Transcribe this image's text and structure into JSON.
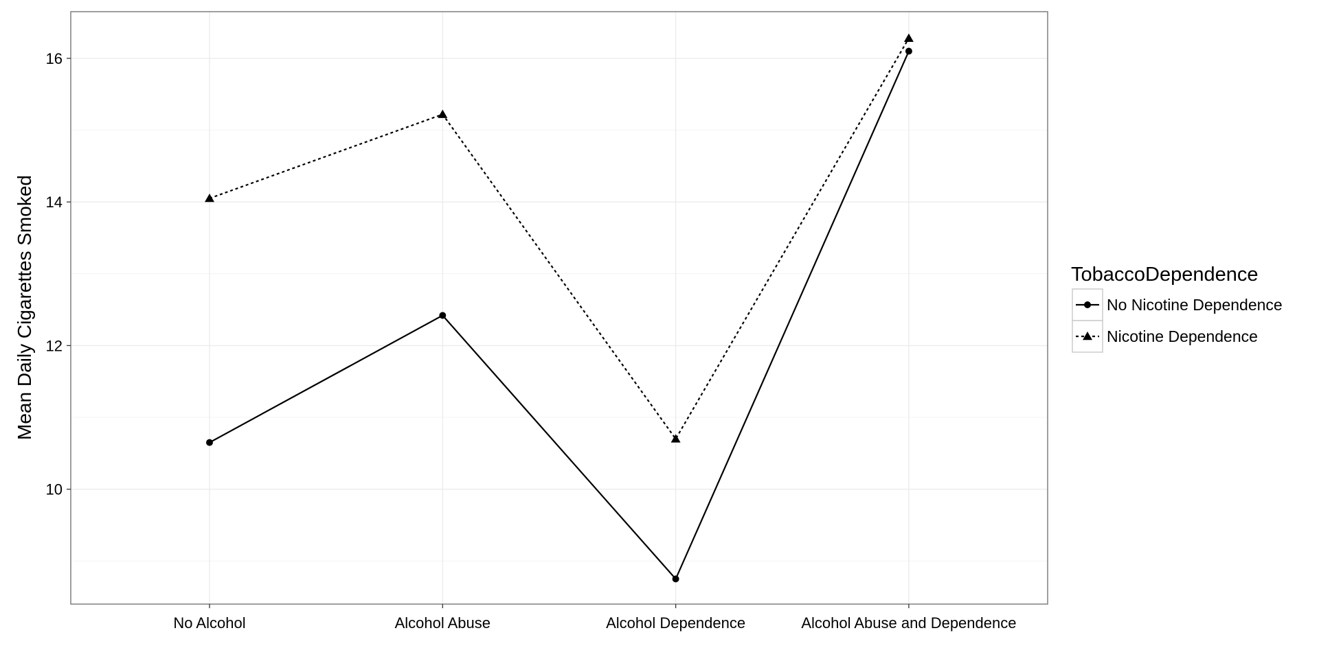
{
  "chart_data": {
    "type": "line",
    "categories": [
      "No Alcohol",
      "Alcohol Abuse",
      "Alcohol Dependence",
      "Alcohol Abuse and Dependence"
    ],
    "series": [
      {
        "name": "No Nicotine Dependence",
        "values": [
          10.65,
          12.42,
          8.75,
          16.1
        ],
        "line_style": "solid",
        "marker": "circle"
      },
      {
        "name": "Nicotine Dependence",
        "values": [
          14.05,
          15.22,
          10.7,
          16.28
        ],
        "line_style": "dotted",
        "marker": "triangle"
      }
    ],
    "xlabel": "",
    "ylabel": "Mean Daily Cigarettes Smoked",
    "ylim": [
      8.4,
      16.65
    ],
    "yticks": [
      10,
      12,
      14,
      16
    ],
    "grid": true,
    "legend_title": "TobaccoDependence",
    "legend_position": "right",
    "colors": {
      "line": "#000000",
      "grid": "#ebebeb",
      "panel_border": "#7f7f7f",
      "legend_border": "#cccccc",
      "background": "#ffffff"
    }
  }
}
